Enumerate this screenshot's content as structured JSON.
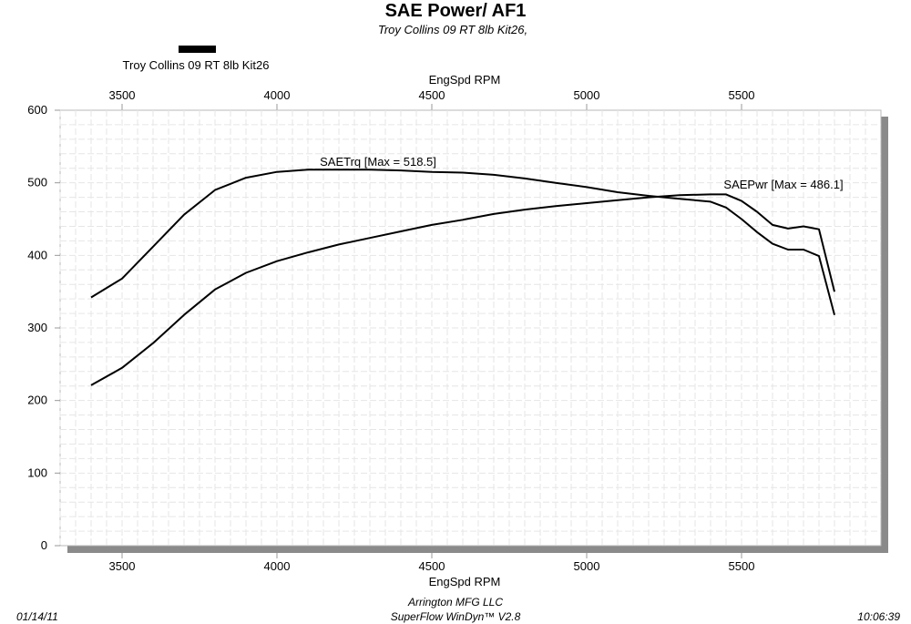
{
  "header": {
    "title": "SAE Power/ AF1",
    "subtitle": "Troy Collins 09 RT 8lb Kit26,"
  },
  "legend": {
    "label": "Troy Collins 09 RT 8lb Kit26",
    "swatch_color": "#000000"
  },
  "footer": {
    "date": "01/14/11",
    "company": "Arrington MFG LLC",
    "software": "SuperFlow WinDyn™ V2.8",
    "time": "10:06:39"
  },
  "chart_data": {
    "type": "line",
    "title": "SAE Power/ AF1",
    "subtitle": "Troy Collins 09 RT 8lb Kit26,",
    "xlabel": "EngSpd  RPM",
    "x_axis_top_label": "EngSpd  RPM",
    "ylabel": "",
    "xlim": [
      3300,
      5950
    ],
    "ylim": [
      0,
      600
    ],
    "x_ticks": [
      3500,
      4000,
      4500,
      5000,
      5500
    ],
    "y_ticks": [
      0,
      100,
      200,
      300,
      400,
      500,
      600
    ],
    "grid": true,
    "legend_position": "top-left",
    "series": [
      {
        "name": "SAETrq",
        "annotation": "SAETrq [Max = 518.5]",
        "color": "#000000",
        "x": [
          3400,
          3500,
          3600,
          3700,
          3800,
          3900,
          4000,
          4100,
          4200,
          4300,
          4400,
          4500,
          4600,
          4700,
          4800,
          4900,
          5000,
          5100,
          5200,
          5300,
          5400,
          5450,
          5500,
          5550,
          5600,
          5650,
          5700,
          5750,
          5800
        ],
        "y": [
          342,
          368,
          412,
          456,
          490,
          507,
          515,
          518,
          518,
          518,
          517,
          515,
          514,
          511,
          506,
          500,
          494,
          487,
          482,
          478,
          474,
          466,
          450,
          432,
          416,
          408,
          408,
          399,
          318
        ]
      },
      {
        "name": "SAEPwr",
        "annotation": "SAEPwr [Max = 486.1]",
        "color": "#000000",
        "x": [
          3400,
          3500,
          3600,
          3700,
          3800,
          3900,
          4000,
          4100,
          4200,
          4300,
          4400,
          4500,
          4600,
          4700,
          4800,
          4900,
          5000,
          5100,
          5200,
          5300,
          5400,
          5450,
          5500,
          5550,
          5600,
          5650,
          5700,
          5750,
          5800
        ],
        "y": [
          221,
          245,
          279,
          318,
          353,
          376,
          392,
          404,
          415,
          424,
          433,
          442,
          449,
          457,
          463,
          468,
          472,
          476,
          480,
          483,
          484,
          484,
          475,
          460,
          442,
          437,
          440,
          436,
          350
        ]
      }
    ]
  }
}
